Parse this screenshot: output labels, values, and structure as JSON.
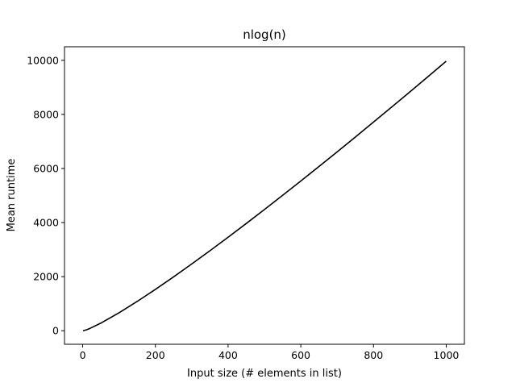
{
  "chart_data": {
    "type": "line",
    "title": "nlog(n)",
    "xlabel": "Input size (# elements in list)",
    "ylabel": "Mean runtime",
    "xlim": [
      -50,
      1050
    ],
    "ylim": [
      -500,
      10500
    ],
    "x_ticks": [
      0,
      200,
      400,
      600,
      800,
      1000
    ],
    "y_ticks": [
      0,
      2000,
      4000,
      6000,
      8000,
      10000
    ],
    "grid": false,
    "series": [
      {
        "color": "#000000",
        "x": [
          1,
          10,
          20,
          50,
          100,
          150,
          200,
          250,
          300,
          350,
          400,
          450,
          500,
          550,
          600,
          650,
          700,
          750,
          800,
          850,
          900,
          950,
          1000
        ],
        "y": [
          0,
          33,
          86,
          282,
          664,
          1084,
          1529,
          1991,
          2469,
          2958,
          3458,
          3966,
          4483,
          5006,
          5537,
          6073,
          6615,
          7161,
          7715,
          8271,
          8831,
          9397,
          9966
        ]
      }
    ]
  }
}
